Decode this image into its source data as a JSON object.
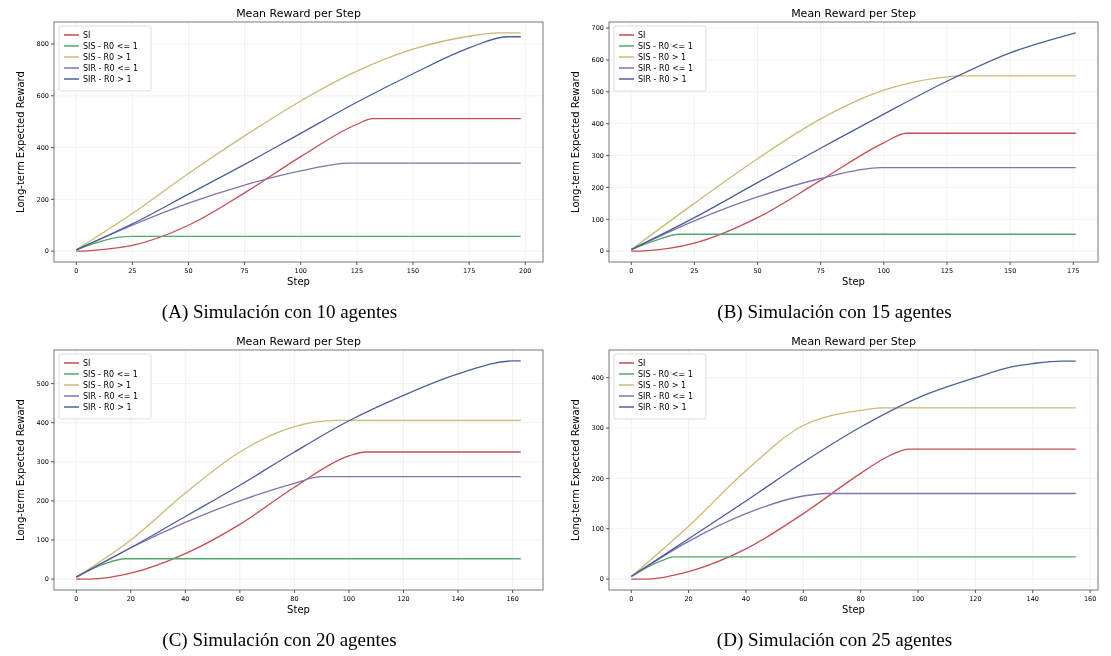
{
  "chart_data": [
    {
      "type": "line",
      "title": "Mean Reward per Step",
      "xlabel": "Step",
      "ylabel": "Long-term Expected Reward",
      "annotations": [
        "(A) Simulación con 10 agentes"
      ],
      "xlim": [
        -9.9,
        207.9
      ],
      "ylim": [
        -42,
        885
      ],
      "xticks": [
        0,
        25,
        50,
        75,
        100,
        125,
        150,
        175,
        200
      ],
      "yticks": [
        0,
        200,
        400,
        600,
        800
      ],
      "grid": true,
      "legend": "top left",
      "line_style": "solid",
      "series": [
        {
          "name": "SI",
          "color": "#c44e52",
          "x": [
            0,
            5,
            10,
            25,
            50,
            75,
            100,
            125,
            132,
            198
          ],
          "values": [
            0,
            1,
            5,
            22,
            100,
            225,
            365,
            490,
            512,
            512
          ]
        },
        {
          "name": "SIS - R0 <= 1",
          "color": "#55a868",
          "x": [
            0,
            10,
            20,
            25,
            198
          ],
          "values": [
            5,
            35,
            55,
            57,
            57
          ]
        },
        {
          "name": "SIS - R0 > 1",
          "color": "#ccb974",
          "x": [
            0,
            25,
            50,
            75,
            100,
            125,
            150,
            175,
            188,
            198
          ],
          "values": [
            5,
            145,
            300,
            445,
            580,
            695,
            780,
            830,
            843,
            843
          ]
        },
        {
          "name": "SIR - R0 <= 1",
          "color": "#8172b2",
          "x": [
            0,
            25,
            50,
            75,
            100,
            122,
            198
          ],
          "values": [
            5,
            100,
            185,
            255,
            310,
            340,
            340
          ]
        },
        {
          "name": "SIR - R0 > 1",
          "color": "#4c5f9c",
          "x": [
            0,
            25,
            50,
            75,
            100,
            125,
            150,
            175,
            192,
            198
          ],
          "values": [
            5,
            105,
            220,
            335,
            455,
            575,
            685,
            785,
            828,
            828
          ]
        }
      ]
    },
    {
      "type": "line",
      "title": "Mean Reward per Step",
      "xlabel": "Step",
      "ylabel": "Long-term Expected Reward",
      "annotations": [
        "(B) Simulación con 15 agentes"
      ],
      "xlim": [
        -8.8,
        184.8
      ],
      "ylim": [
        -34,
        719
      ],
      "xticks": [
        0,
        25,
        50,
        75,
        100,
        125,
        150,
        175
      ],
      "yticks": [
        0,
        100,
        200,
        300,
        400,
        500,
        600,
        700
      ],
      "grid": true,
      "legend": "top left",
      "line_style": "solid",
      "series": [
        {
          "name": "SI",
          "color": "#c44e52",
          "x": [
            0,
            5,
            25,
            50,
            75,
            100,
            109,
            176
          ],
          "values": [
            0,
            1,
            25,
            105,
            222,
            340,
            370,
            370
          ]
        },
        {
          "name": "SIS - R0 <= 1",
          "color": "#55a868",
          "x": [
            0,
            10,
            19,
            176
          ],
          "values": [
            5,
            35,
            53,
            53
          ]
        },
        {
          "name": "SIS - R0 > 1",
          "color": "#ccb974",
          "x": [
            0,
            25,
            50,
            75,
            100,
            125,
            130,
            176
          ],
          "values": [
            5,
            150,
            290,
            415,
            505,
            547,
            550,
            550
          ]
        },
        {
          "name": "SIR - R0 <= 1",
          "color": "#8172b2",
          "x": [
            0,
            25,
            50,
            75,
            99,
            176
          ],
          "values": [
            5,
            95,
            170,
            228,
            262,
            262
          ]
        },
        {
          "name": "SIR - R0 > 1",
          "color": "#4c5f9c",
          "x": [
            0,
            25,
            50,
            75,
            100,
            125,
            150,
            176
          ],
          "values": [
            5,
            105,
            215,
            323,
            430,
            533,
            622,
            685
          ]
        }
      ]
    },
    {
      "type": "line",
      "title": "Mean Reward per Step",
      "xlabel": "Step",
      "ylabel": "Long-term Expected Reward",
      "annotations": [
        "(C) Simulación con 20 agentes"
      ],
      "xlim": [
        -8.15,
        171.15
      ],
      "ylim": [
        -28,
        586
      ],
      "xticks": [
        0,
        20,
        40,
        60,
        80,
        100,
        120,
        140,
        160
      ],
      "yticks": [
        0,
        100,
        200,
        300,
        400,
        500
      ],
      "grid": true,
      "legend": "top left",
      "line_style": "solid",
      "series": [
        {
          "name": "SI",
          "color": "#c44e52",
          "x": [
            0,
            5,
            20,
            40,
            60,
            80,
            100,
            106,
            163
          ],
          "values": [
            0,
            0,
            15,
            65,
            140,
            235,
            315,
            325,
            325
          ]
        },
        {
          "name": "SIS - R0 <= 1",
          "color": "#55a868",
          "x": [
            0,
            10,
            18,
            163
          ],
          "values": [
            5,
            38,
            52,
            52
          ]
        },
        {
          "name": "SIS - R0 > 1",
          "color": "#ccb974",
          "x": [
            0,
            20,
            40,
            60,
            80,
            95,
            163
          ],
          "values": [
            5,
            100,
            220,
            325,
            390,
            406,
            406
          ]
        },
        {
          "name": "SIR - R0 <= 1",
          "color": "#8172b2",
          "x": [
            0,
            20,
            40,
            60,
            80,
            90,
            163
          ],
          "values": [
            5,
            80,
            145,
            200,
            245,
            262,
            262
          ]
        },
        {
          "name": "SIR - R0 > 1",
          "color": "#4c5f9c",
          "x": [
            0,
            20,
            40,
            60,
            80,
            100,
            120,
            140,
            160,
            163
          ],
          "values": [
            5,
            80,
            160,
            240,
            325,
            405,
            470,
            525,
            558,
            558
          ]
        }
      ]
    },
    {
      "type": "line",
      "title": "Mean Reward per Step",
      "xlabel": "Step",
      "ylabel": "Long-term Expected Reward",
      "annotations": [
        "(D) Simulación con 25 agentes"
      ],
      "xlim": [
        -7.75,
        162.75
      ],
      "ylim": [
        -21.7,
        455
      ],
      "xticks": [
        0,
        20,
        40,
        60,
        80,
        100,
        120,
        140,
        160
      ],
      "yticks": [
        0,
        100,
        200,
        300,
        400
      ],
      "grid": true,
      "legend": "top left",
      "line_style": "solid",
      "series": [
        {
          "name": "SI",
          "color": "#c44e52",
          "x": [
            0,
            5,
            20,
            40,
            60,
            80,
            90,
            97,
            155
          ],
          "values": [
            0,
            0,
            15,
            60,
            130,
            210,
            245,
            258,
            258
          ]
        },
        {
          "name": "SIS - R0 <= 1",
          "color": "#55a868",
          "x": [
            0,
            10,
            15,
            155
          ],
          "values": [
            5,
            35,
            44,
            44
          ]
        },
        {
          "name": "SIS - R0 > 1",
          "color": "#ccb974",
          "x": [
            0,
            20,
            40,
            60,
            70,
            80,
            87,
            155
          ],
          "values": [
            5,
            105,
            215,
            305,
            325,
            335,
            340,
            340
          ]
        },
        {
          "name": "SIR - R0 <= 1",
          "color": "#8172b2",
          "x": [
            0,
            20,
            40,
            60,
            68,
            155
          ],
          "values": [
            5,
            75,
            130,
            165,
            170,
            170
          ]
        },
        {
          "name": "SIR - R0 > 1",
          "color": "#4c5f9c",
          "x": [
            0,
            20,
            40,
            60,
            80,
            100,
            120,
            133,
            140,
            150,
            155
          ],
          "values": [
            5,
            80,
            155,
            232,
            302,
            360,
            400,
            422,
            428,
            433,
            433
          ]
        }
      ]
    }
  ]
}
